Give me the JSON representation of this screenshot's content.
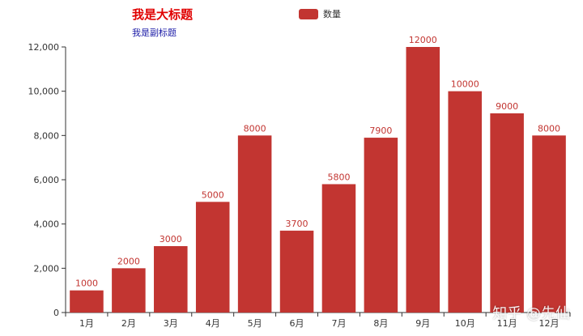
{
  "chart_data": {
    "type": "bar",
    "title": "我是大标题",
    "subtitle": "我是副标题",
    "categories": [
      "1月",
      "2月",
      "3月",
      "4月",
      "5月",
      "6月",
      "7月",
      "8月",
      "9月",
      "10月",
      "11月",
      "12月"
    ],
    "series": [
      {
        "name": "数量",
        "values": [
          1000,
          2000,
          3000,
          5000,
          8000,
          3700,
          5800,
          7900,
          12000,
          10000,
          9000,
          8000
        ]
      }
    ],
    "ylim": [
      0,
      12000
    ],
    "yticks": [
      0,
      2000,
      4000,
      6000,
      8000,
      10000,
      12000
    ],
    "ytick_labels": [
      "0",
      "2,000",
      "4,000",
      "6,000",
      "8,000",
      "10,000",
      "12,000"
    ],
    "data_labels": true,
    "grid": false,
    "legend_position": "top-center",
    "colors": {
      "bar": "#c23531",
      "title": "#e00000",
      "subtitle": "#1a1aa6",
      "label": "#c23531"
    }
  },
  "watermark": "知乎 @先仙"
}
